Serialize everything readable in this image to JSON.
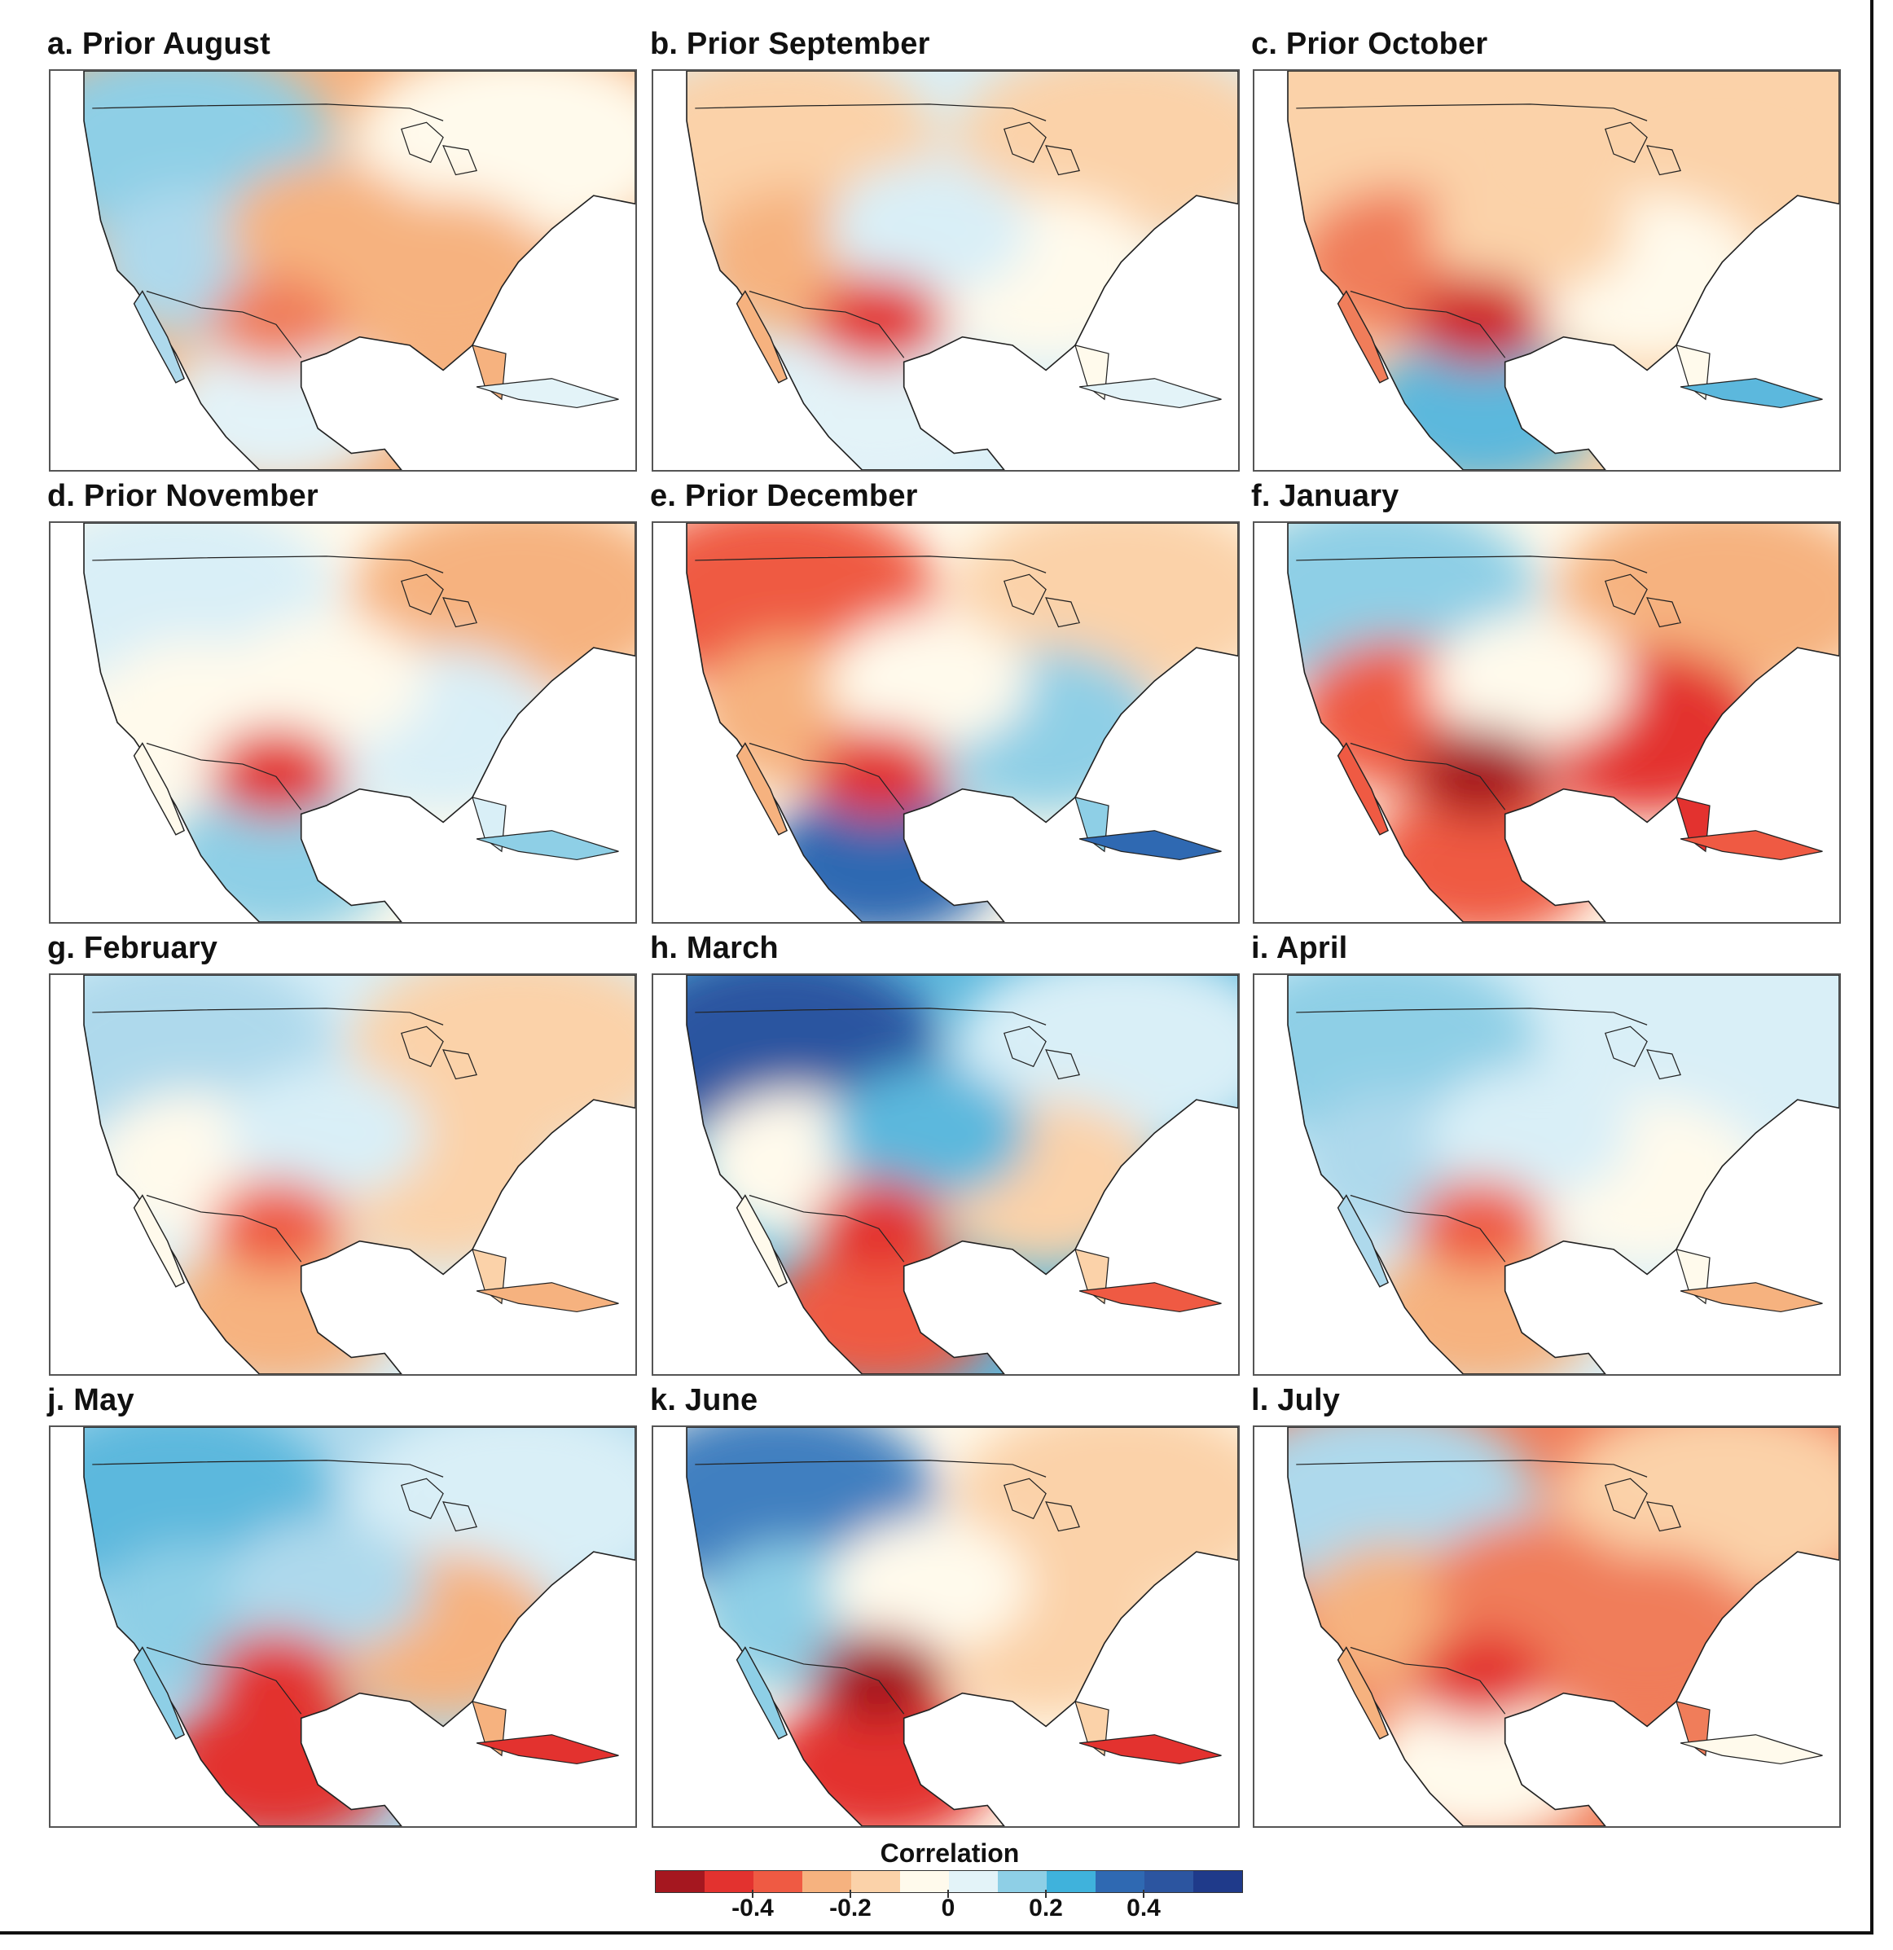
{
  "panels": [
    {
      "id": "a",
      "title": "a. Prior August",
      "colors": {
        "nw": "#8ecfe6",
        "ne": "#fffaec",
        "sw": "#aed9ec",
        "se": "#f6b27f",
        "c": "#f6b27f",
        "mex": "#e3f3f8",
        "hot": "#f07d5a"
      }
    },
    {
      "id": "b",
      "title": "b. Prior September",
      "colors": {
        "nw": "#fbd2a9",
        "ne": "#fbd2a9",
        "sw": "#f6b27f",
        "se": "#fffaec",
        "c": "#d9eff7",
        "mex": "#e3f3f8",
        "hot": "#e3322f"
      }
    },
    {
      "id": "c",
      "title": "c. Prior October",
      "colors": {
        "nw": "#fbd2a9",
        "ne": "#fbd2a9",
        "sw": "#f07d5a",
        "se": "#fffaec",
        "c": "#fbd2a9",
        "mex": "#5cb8dd",
        "hot": "#cf2127"
      }
    },
    {
      "id": "d",
      "title": "d. Prior November",
      "colors": {
        "nw": "#d9eff7",
        "ne": "#f6b27f",
        "sw": "#fffaec",
        "se": "#d9eff7",
        "c": "#fffaec",
        "mex": "#8ecfe6",
        "hot": "#e3322f"
      }
    },
    {
      "id": "e",
      "title": "e. Prior December",
      "colors": {
        "nw": "#ef5a43",
        "ne": "#fbd2a9",
        "sw": "#f6b27f",
        "se": "#8ecfe6",
        "c": "#fffaec",
        "mex": "#2f69b2",
        "hot": "#e3322f"
      }
    },
    {
      "id": "f",
      "title": "f. January",
      "colors": {
        "nw": "#8ecfe6",
        "ne": "#f6b27f",
        "sw": "#ef5a43",
        "se": "#e3322f",
        "c": "#fffaec",
        "mex": "#ef5a43",
        "hot": "#a5171f"
      }
    },
    {
      "id": "g",
      "title": "g. February",
      "colors": {
        "nw": "#aed9ec",
        "ne": "#fbd2a9",
        "sw": "#fffaec",
        "se": "#fbd2a9",
        "c": "#d9eff7",
        "mex": "#f6b27f",
        "hot": "#ef5a43"
      }
    },
    {
      "id": "h",
      "title": "h. March",
      "colors": {
        "nw": "#2c55a0",
        "ne": "#d9eff7",
        "sw": "#fffaec",
        "se": "#fbd2a9",
        "c": "#5cb8dd",
        "mex": "#ef5a43",
        "hot": "#e3322f"
      }
    },
    {
      "id": "i",
      "title": "i. April",
      "colors": {
        "nw": "#8ecfe6",
        "ne": "#d9eff7",
        "sw": "#aed9ec",
        "se": "#fffaec",
        "c": "#d9eff7",
        "mex": "#f6b27f",
        "hot": "#ef5a43"
      }
    },
    {
      "id": "j",
      "title": "j. May",
      "colors": {
        "nw": "#5cb8dd",
        "ne": "#d9eff7",
        "sw": "#8ecfe6",
        "se": "#f6b27f",
        "c": "#aed9ec",
        "mex": "#e3322f",
        "hot": "#e3322f"
      }
    },
    {
      "id": "k",
      "title": "k. June",
      "colors": {
        "nw": "#3f7fc0",
        "ne": "#fbd2a9",
        "sw": "#8ecfe6",
        "se": "#fbd2a9",
        "c": "#fffaec",
        "mex": "#e3322f",
        "hot": "#a5171f"
      }
    },
    {
      "id": "l",
      "title": "l. July",
      "colors": {
        "nw": "#aed9ec",
        "ne": "#fbd2a9",
        "sw": "#f6b27f",
        "se": "#f07d5a",
        "c": "#f07d5a",
        "mex": "#fffaec",
        "hot": "#e3322f"
      }
    }
  ],
  "colorbar": {
    "title": "Correlation",
    "colors": [
      "#a5171f",
      "#e3322f",
      "#ef5a43",
      "#f6b27f",
      "#fbd2a9",
      "#fffaec",
      "#e3f3f8",
      "#8ecfe6",
      "#3fb2dc",
      "#2f69b2",
      "#2c55a0",
      "#1f3a8a"
    ],
    "ticks": [
      "-0.4",
      "-0.2",
      "0",
      "0.2",
      "0.4"
    ],
    "tick_values": [
      -0.4,
      -0.2,
      0,
      0.2,
      0.4
    ],
    "range": [
      -0.6,
      0.6
    ]
  }
}
